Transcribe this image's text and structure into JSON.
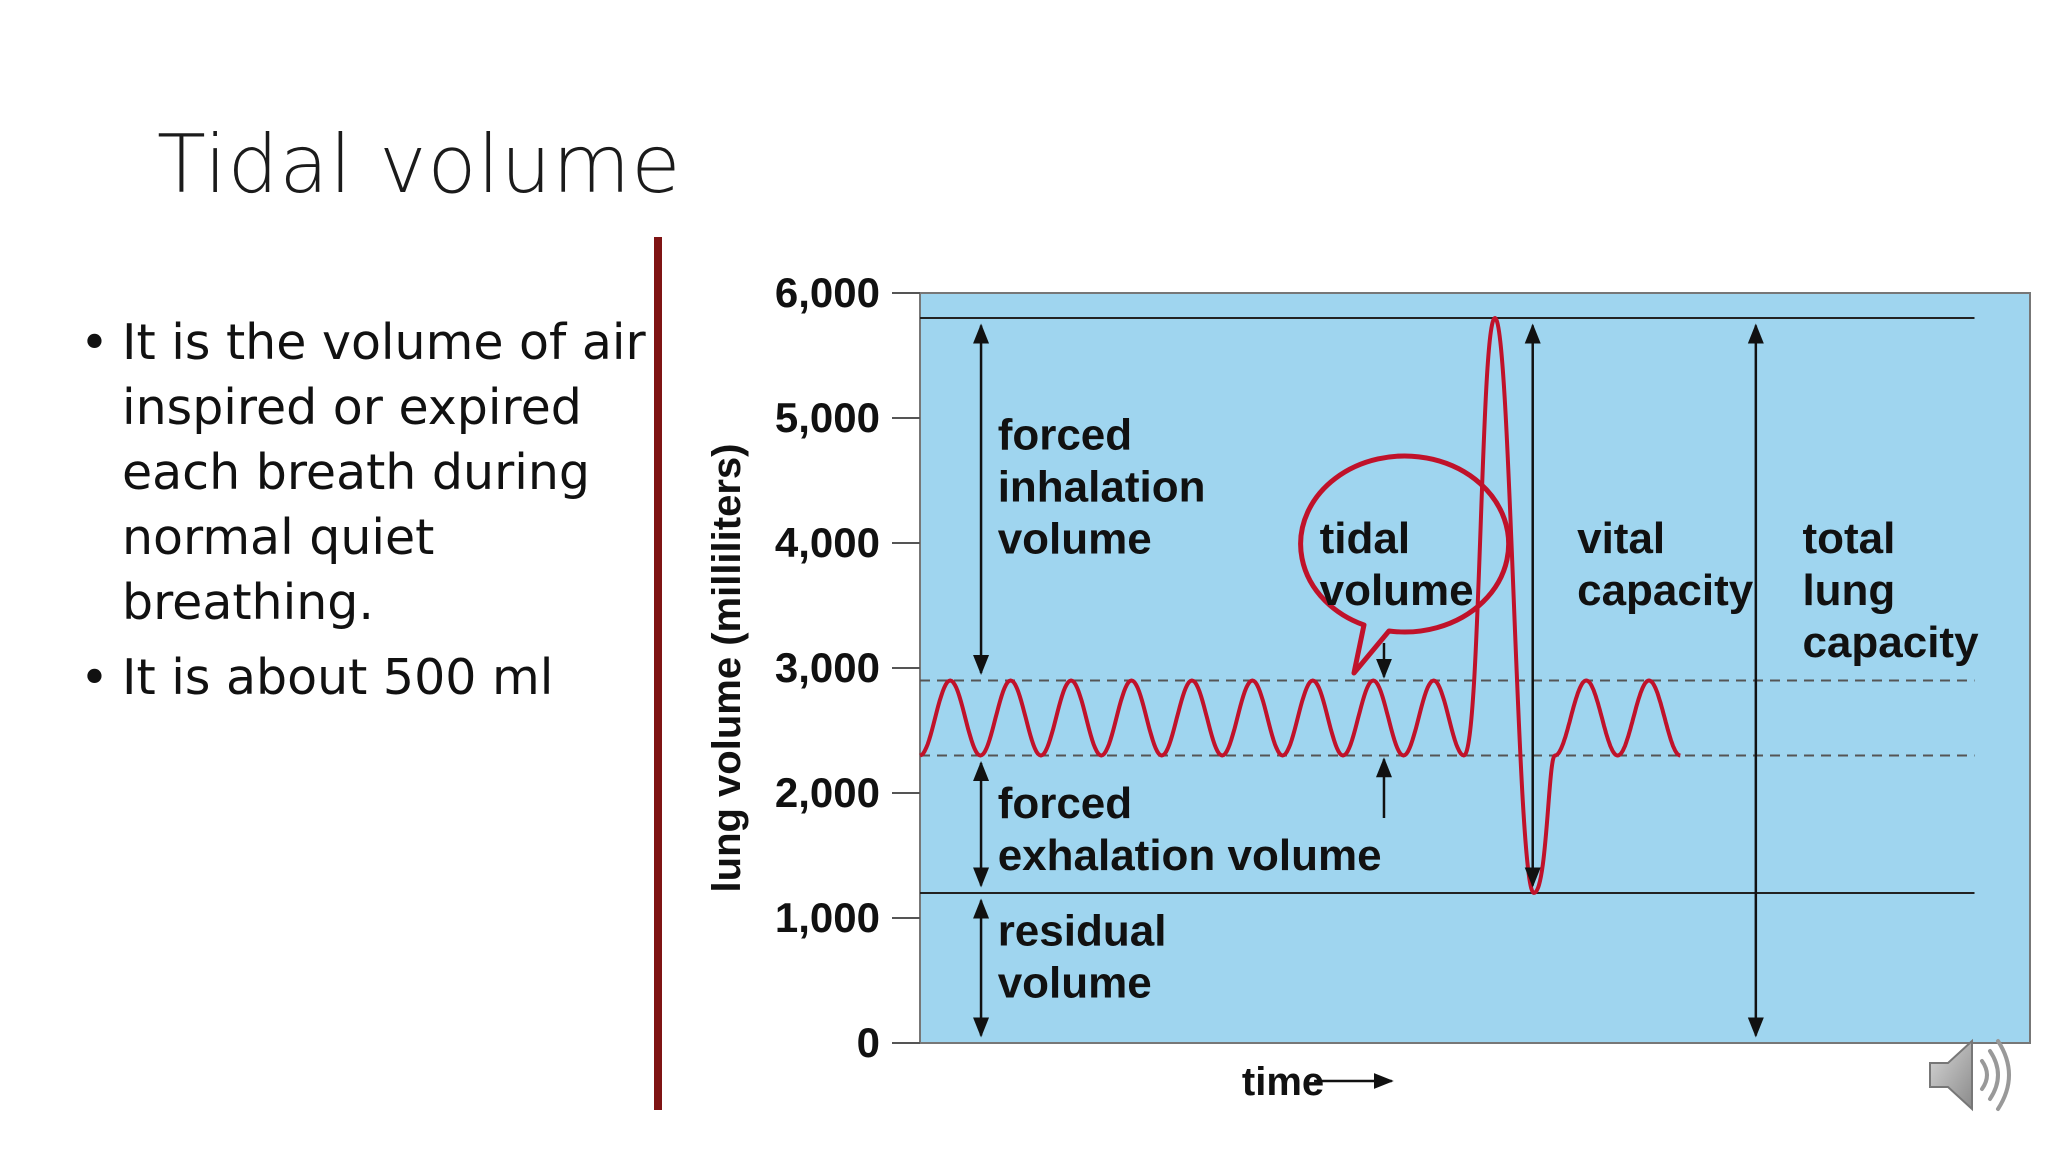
{
  "slide": {
    "title": "Tidal volume",
    "bullets": [
      "It is the volume of air inspired or expired each breath during normal quiet breathing.",
      " It is about 500 ml"
    ]
  },
  "icons": {
    "audio": "speaker-icon"
  },
  "colors": {
    "divider": "#7f1414",
    "chart_background": "#9fd5ef",
    "trace": "#c0122a",
    "callout": "#c0122a"
  },
  "chart_data": {
    "type": "line",
    "title": "",
    "xlabel": "time",
    "ylabel": "lung volume (milliliters)",
    "ylim": [
      0,
      6000
    ],
    "yticks": [
      0,
      1000,
      2000,
      3000,
      4000,
      5000,
      6000
    ],
    "ytick_labels": [
      "0",
      "1,000",
      "2,000",
      "3,000",
      "4,000",
      "5,000",
      "6,000"
    ],
    "grid": false,
    "reference_levels": {
      "maximum": 5800,
      "tidal_top": 2900,
      "tidal_bottom": 2300,
      "residual": 1200
    },
    "tidal_breaths_before": 9,
    "tidal_breaths_after": 2,
    "forced_peak": 5800,
    "forced_trough": 1200,
    "labels": {
      "forced_inhalation": [
        "forced",
        "inhalation",
        "volume"
      ],
      "tidal": [
        "tidal",
        "volume"
      ],
      "vital": [
        "vital",
        "capacity"
      ],
      "total": [
        "total",
        "lung",
        "capacity"
      ],
      "forced_exhalation": [
        "forced",
        "exhalation volume"
      ],
      "residual": [
        "residual",
        "volume"
      ]
    }
  }
}
